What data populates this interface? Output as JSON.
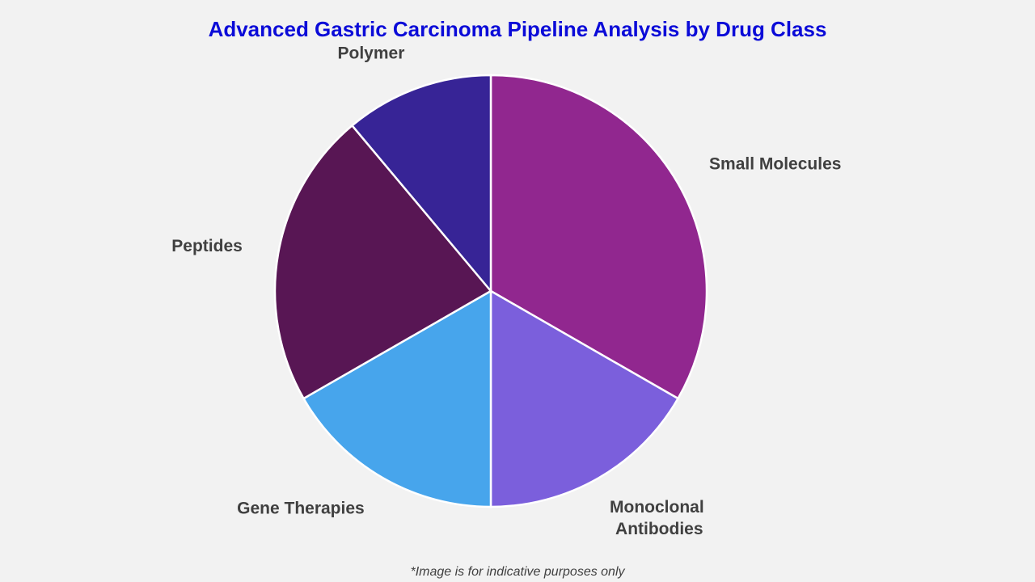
{
  "chart_data": {
    "type": "pie",
    "title": "Advanced Gastric Carcinoma Pipeline Analysis by Drug Class",
    "categories": [
      "Small Molecules",
      "Monoclonal Antibodies",
      "Gene Therapies",
      "Peptides",
      "Polymer"
    ],
    "values": [
      33.3,
      16.7,
      16.7,
      22.2,
      11.1
    ],
    "colors": [
      "#91278f",
      "#7b5fdc",
      "#47a5ec",
      "#581654",
      "#372496"
    ],
    "footnote": "*Image is for indicative purposes only"
  }
}
